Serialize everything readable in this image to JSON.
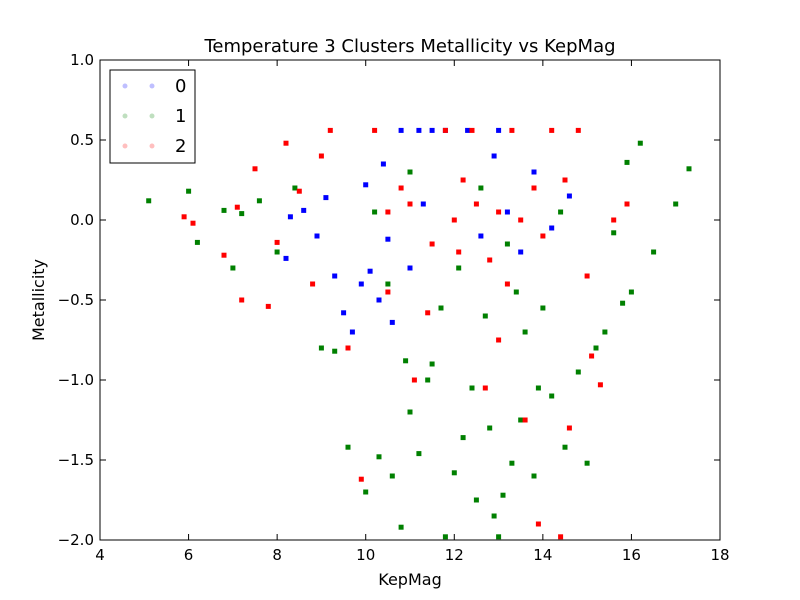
{
  "chart_data": {
    "type": "scatter",
    "title": "Temperature 3 Clusters Metallicity vs KepMag",
    "xlabel": "KepMag",
    "ylabel": "Metallicity",
    "xlim": [
      4,
      18
    ],
    "ylim": [
      -2.0,
      1.0
    ],
    "x_ticks": [
      "4",
      "6",
      "8",
      "10",
      "12",
      "14",
      "16",
      "18"
    ],
    "y_ticks": [
      "1.0",
      "0.5",
      "0.0",
      "−0.5",
      "−1.0",
      "−1.5",
      "−2.0"
    ],
    "grid": false,
    "legend_position": "upper-left",
    "series": [
      {
        "name": "0",
        "color": "#0000ff",
        "points": [
          [
            8.2,
            -0.24
          ],
          [
            8.3,
            0.02
          ],
          [
            8.6,
            0.06
          ],
          [
            9.1,
            0.14
          ],
          [
            9.5,
            -0.58
          ],
          [
            9.7,
            -0.7
          ],
          [
            9.9,
            -0.4
          ],
          [
            10.0,
            0.22
          ],
          [
            10.1,
            -0.32
          ],
          [
            10.3,
            -0.5
          ],
          [
            10.4,
            0.35
          ],
          [
            10.6,
            -0.64
          ],
          [
            10.8,
            0.56
          ],
          [
            11.0,
            -0.3
          ],
          [
            11.2,
            0.56
          ],
          [
            11.5,
            0.56
          ],
          [
            11.8,
            0.56
          ],
          [
            12.3,
            0.56
          ],
          [
            12.6,
            -0.1
          ],
          [
            13.0,
            0.56
          ],
          [
            13.2,
            0.05
          ],
          [
            13.5,
            -0.2
          ],
          [
            13.8,
            0.3
          ],
          [
            14.2,
            -0.05
          ],
          [
            14.6,
            0.15
          ],
          [
            8.9,
            -0.1
          ],
          [
            9.3,
            -0.35
          ],
          [
            10.5,
            -0.12
          ],
          [
            11.3,
            0.1
          ],
          [
            12.9,
            0.4
          ]
        ]
      },
      {
        "name": "1",
        "color": "#008000",
        "points": [
          [
            5.1,
            0.12
          ],
          [
            6.0,
            0.18
          ],
          [
            6.2,
            -0.14
          ],
          [
            6.8,
            0.06
          ],
          [
            7.0,
            -0.3
          ],
          [
            7.2,
            0.04
          ],
          [
            7.6,
            0.12
          ],
          [
            8.0,
            -0.2
          ],
          [
            8.4,
            0.2
          ],
          [
            9.0,
            -0.8
          ],
          [
            9.3,
            -0.82
          ],
          [
            9.6,
            -1.42
          ],
          [
            10.0,
            -1.7
          ],
          [
            10.3,
            -1.48
          ],
          [
            10.6,
            -1.6
          ],
          [
            10.8,
            -1.92
          ],
          [
            11.0,
            -1.2
          ],
          [
            11.2,
            -1.46
          ],
          [
            11.5,
            -0.9
          ],
          [
            11.8,
            -1.98
          ],
          [
            12.0,
            -1.58
          ],
          [
            12.2,
            -1.36
          ],
          [
            12.5,
            -1.75
          ],
          [
            12.8,
            -1.3
          ],
          [
            12.9,
            -1.85
          ],
          [
            13.0,
            -1.98
          ],
          [
            13.1,
            -1.72
          ],
          [
            13.3,
            -1.52
          ],
          [
            13.5,
            -1.25
          ],
          [
            13.8,
            -1.6
          ],
          [
            14.2,
            -1.1
          ],
          [
            14.5,
            -1.42
          ],
          [
            15.0,
            -1.52
          ],
          [
            15.4,
            -0.7
          ],
          [
            15.8,
            -0.52
          ],
          [
            16.2,
            0.48
          ],
          [
            16.5,
            -0.2
          ],
          [
            17.0,
            0.1
          ],
          [
            17.3,
            0.32
          ],
          [
            15.9,
            0.36
          ],
          [
            15.6,
            -0.08
          ],
          [
            16.0,
            -0.45
          ],
          [
            15.2,
            -0.8
          ],
          [
            14.8,
            -0.95
          ],
          [
            13.9,
            -1.05
          ],
          [
            12.4,
            -1.05
          ],
          [
            11.4,
            -1.0
          ],
          [
            10.9,
            -0.88
          ],
          [
            12.7,
            -0.6
          ],
          [
            13.6,
            -0.7
          ],
          [
            11.7,
            -0.55
          ],
          [
            10.5,
            -0.4
          ],
          [
            12.1,
            -0.3
          ],
          [
            13.4,
            -0.45
          ],
          [
            14.0,
            -0.55
          ],
          [
            11.0,
            0.3
          ],
          [
            12.6,
            0.2
          ],
          [
            13.2,
            -0.15
          ],
          [
            14.4,
            0.05
          ],
          [
            10.2,
            0.05
          ]
        ]
      },
      {
        "name": "2",
        "color": "#ff0000",
        "points": [
          [
            5.9,
            0.02
          ],
          [
            6.1,
            -0.02
          ],
          [
            6.8,
            -0.22
          ],
          [
            7.1,
            0.08
          ],
          [
            7.2,
            -0.5
          ],
          [
            7.5,
            0.32
          ],
          [
            7.8,
            -0.54
          ],
          [
            8.0,
            -0.14
          ],
          [
            8.2,
            0.48
          ],
          [
            8.5,
            0.18
          ],
          [
            8.8,
            -0.4
          ],
          [
            9.0,
            0.4
          ],
          [
            9.2,
            0.56
          ],
          [
            9.6,
            -0.8
          ],
          [
            9.9,
            -1.62
          ],
          [
            10.2,
            0.56
          ],
          [
            10.5,
            -0.45
          ],
          [
            10.8,
            0.2
          ],
          [
            11.1,
            -1.0
          ],
          [
            11.4,
            -0.58
          ],
          [
            11.8,
            0.56
          ],
          [
            12.1,
            -0.2
          ],
          [
            12.4,
            0.56
          ],
          [
            12.7,
            -1.05
          ],
          [
            13.0,
            -0.75
          ],
          [
            13.3,
            0.56
          ],
          [
            13.6,
            -1.25
          ],
          [
            13.9,
            -1.9
          ],
          [
            14.2,
            0.56
          ],
          [
            14.4,
            -1.98
          ],
          [
            14.6,
            -1.3
          ],
          [
            14.8,
            0.56
          ],
          [
            15.1,
            -0.85
          ],
          [
            15.3,
            -1.03
          ],
          [
            15.6,
            0.0
          ],
          [
            15.9,
            0.1
          ],
          [
            12.0,
            0.0
          ],
          [
            12.5,
            0.1
          ],
          [
            13.0,
            0.05
          ],
          [
            13.5,
            0.0
          ],
          [
            14.0,
            -0.1
          ],
          [
            13.8,
            0.2
          ],
          [
            12.8,
            -0.25
          ],
          [
            12.2,
            0.25
          ],
          [
            11.5,
            -0.15
          ],
          [
            14.5,
            0.25
          ],
          [
            15.0,
            -0.35
          ],
          [
            11.0,
            0.1
          ],
          [
            10.5,
            0.05
          ],
          [
            13.2,
            -0.4
          ]
        ]
      }
    ]
  }
}
